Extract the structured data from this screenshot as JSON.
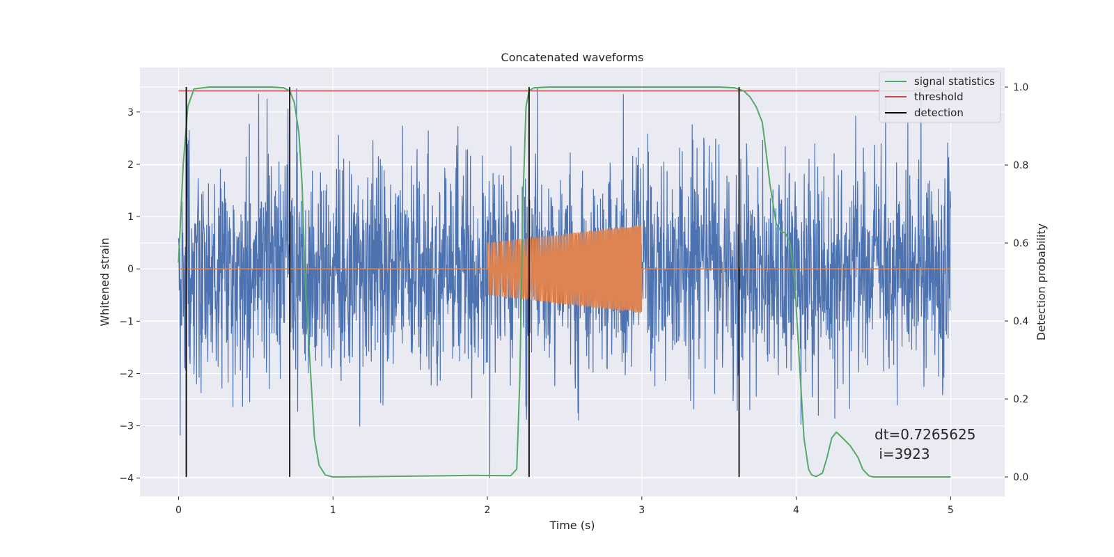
{
  "chart_data": {
    "type": "line",
    "title": "Concatenated waveforms",
    "xlabel": "Time (s)",
    "ylabel": "Whitened strain",
    "y2label": "Detection probability",
    "xlim": [
      -0.25,
      5.35
    ],
    "ylim": [
      -4.35,
      3.85
    ],
    "y2lim": [
      -0.05,
      1.05
    ],
    "xticks": [
      "0",
      "1",
      "2",
      "3",
      "4",
      "5"
    ],
    "yticks": [
      "3",
      "2",
      "1",
      "0",
      "−1",
      "−2",
      "−3",
      "−4"
    ],
    "y2ticks": [
      "1.0",
      "0.8",
      "0.6",
      "0.4",
      "0.2",
      "0.0"
    ],
    "grid": true,
    "legend_position": "top-right",
    "colors": {
      "strain": "#4c72b0",
      "injection": "#dd8452",
      "statistics": "#55a868",
      "threshold": "#c44e52",
      "detection": "#000000",
      "background": "#eaeaf2",
      "grid": "#ffffff"
    },
    "series": [
      {
        "name": "",
        "role": "whitened strain (noise)",
        "axis": "left",
        "x_range": [
          0,
          5
        ],
        "typical_amplitude": 1.2,
        "y_min": -4.0,
        "y_max": 3.45
      },
      {
        "name": "",
        "role": "injected chirp",
        "axis": "left",
        "x_range": [
          2,
          3
        ],
        "envelope_start": 0.5,
        "envelope_end": 0.85,
        "baseline": 0.0
      },
      {
        "name": "signal statistics",
        "axis": "right",
        "x": [
          0.0,
          0.03,
          0.06,
          0.1,
          0.2,
          0.6,
          0.68,
          0.72,
          0.75,
          0.78,
          0.8,
          0.82,
          0.85,
          0.88,
          0.91,
          0.95,
          1.0,
          1.5,
          1.9,
          2.15,
          2.19,
          2.21,
          2.23,
          2.25,
          2.27,
          2.3,
          2.4,
          3.0,
          3.5,
          3.6,
          3.66,
          3.7,
          3.74,
          3.78,
          3.8,
          3.83,
          3.87,
          3.9,
          3.93,
          3.96,
          3.99,
          4.02,
          4.05,
          4.08,
          4.1,
          4.13,
          4.17,
          4.2,
          4.23,
          4.26,
          4.3,
          4.35,
          4.4,
          4.43,
          4.47,
          4.5,
          4.6,
          5.0
        ],
        "y": [
          0.55,
          0.8,
          0.95,
          0.995,
          1.0,
          1.0,
          0.998,
          0.99,
          0.96,
          0.88,
          0.75,
          0.5,
          0.3,
          0.1,
          0.03,
          0.005,
          0.0,
          0.002,
          0.004,
          0.003,
          0.02,
          0.25,
          0.7,
          0.95,
          0.99,
          0.998,
          1.0,
          1.0,
          1.0,
          0.998,
          0.99,
          0.975,
          0.95,
          0.91,
          0.85,
          0.75,
          0.65,
          0.63,
          0.625,
          0.6,
          0.5,
          0.3,
          0.1,
          0.02,
          0.005,
          0.001,
          0.01,
          0.05,
          0.1,
          0.115,
          0.1,
          0.08,
          0.05,
          0.02,
          0.003,
          0.0,
          0.0,
          0.0
        ]
      },
      {
        "name": "threshold",
        "axis": "right",
        "x": [
          0,
          5
        ],
        "y": [
          0.99,
          0.99
        ]
      }
    ],
    "detection_name": "detection",
    "detections_x": [
      0.05,
      0.72,
      2.27,
      3.63
    ],
    "detection_range_prob": [
      0.0,
      1.0
    ],
    "annotation": [
      "dt=0.7265625",
      " i=3923"
    ]
  }
}
